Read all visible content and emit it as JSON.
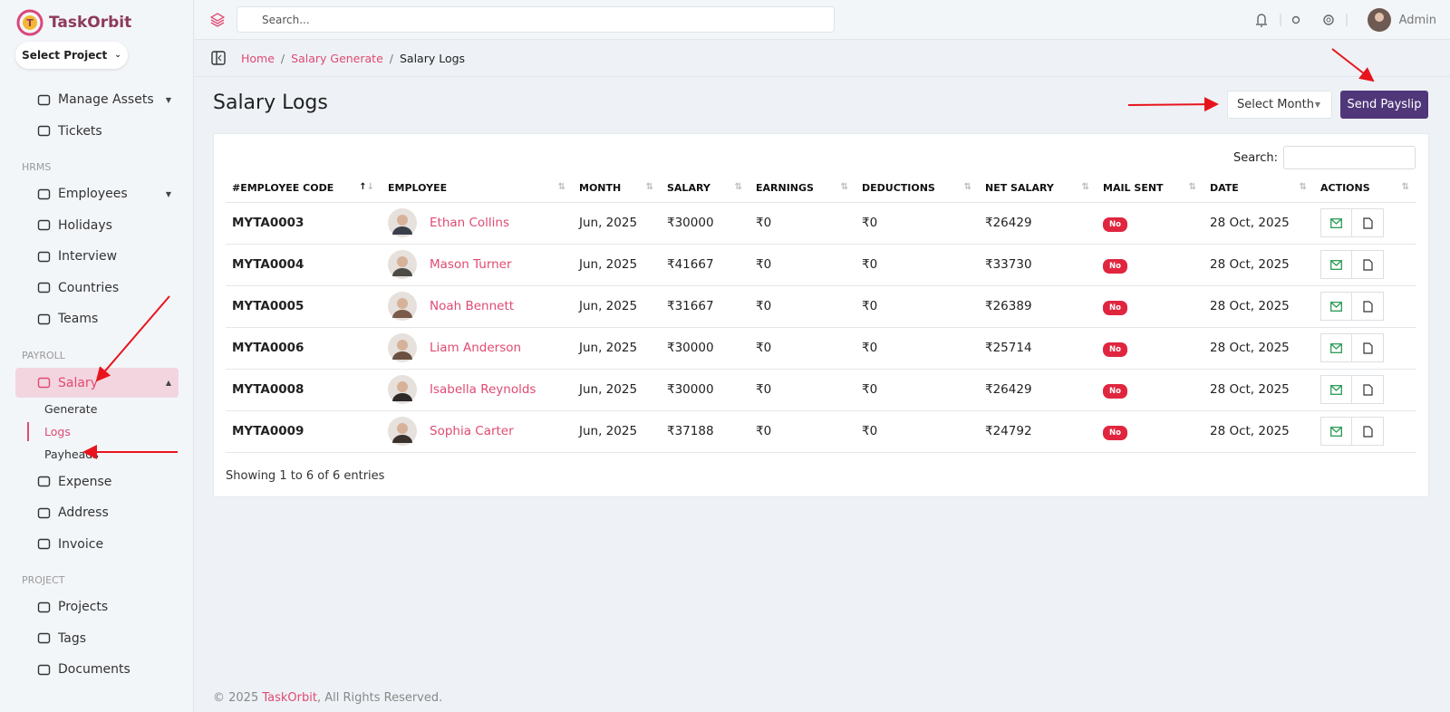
{
  "brand": "TaskOrbit",
  "project_select": "Select Project",
  "sidebar": [
    {
      "kind": "item",
      "label": "Manage Assets",
      "caret": "down"
    },
    {
      "kind": "item",
      "label": "Tickets"
    },
    {
      "kind": "section",
      "label": "HRMS"
    },
    {
      "kind": "item",
      "label": "Employees",
      "caret": "down"
    },
    {
      "kind": "item",
      "label": "Holidays"
    },
    {
      "kind": "item",
      "label": "Interview"
    },
    {
      "kind": "item",
      "label": "Countries"
    },
    {
      "kind": "item",
      "label": "Teams"
    },
    {
      "kind": "section",
      "label": "PAYROLL"
    },
    {
      "kind": "item",
      "label": "Salary",
      "caret": "up",
      "active": true
    },
    {
      "kind": "sub",
      "label": "Generate"
    },
    {
      "kind": "sub",
      "label": "Logs",
      "active": true
    },
    {
      "kind": "sub",
      "label": "Payheads"
    },
    {
      "kind": "item",
      "label": "Expense"
    },
    {
      "kind": "item",
      "label": "Address"
    },
    {
      "kind": "item",
      "label": "Invoice"
    },
    {
      "kind": "section",
      "label": "PROJECT"
    },
    {
      "kind": "item",
      "label": "Projects"
    },
    {
      "kind": "item",
      "label": "Tags"
    },
    {
      "kind": "item",
      "label": "Documents"
    }
  ],
  "topbar": {
    "search_placeholder": "Search...",
    "user": "Admin"
  },
  "breadcrumb": [
    "Home",
    "Salary Generate",
    "Salary Logs"
  ],
  "page_title": "Salary Logs",
  "select_month": "Select Month",
  "send_button": "Send Payslip",
  "table": {
    "search_label": "Search:",
    "columns": [
      "#EMPLOYEE CODE",
      "EMPLOYEE",
      "MONTH",
      "SALARY",
      "EARNINGS",
      "DEDUCTIONS",
      "NET SALARY",
      "MAIL SENT",
      "DATE",
      "ACTIONS"
    ],
    "rows": [
      [
        "MYTA0003",
        "Ethan Collins",
        "Jun, 2025",
        "₹30000",
        "₹0",
        "₹0",
        "₹26429",
        "No",
        "28 Oct, 2025"
      ],
      [
        "MYTA0004",
        "Mason Turner",
        "Jun, 2025",
        "₹41667",
        "₹0",
        "₹0",
        "₹33730",
        "No",
        "28 Oct, 2025"
      ],
      [
        "MYTA0005",
        "Noah Bennett",
        "Jun, 2025",
        "₹31667",
        "₹0",
        "₹0",
        "₹26389",
        "No",
        "28 Oct, 2025"
      ],
      [
        "MYTA0006",
        "Liam Anderson",
        "Jun, 2025",
        "₹30000",
        "₹0",
        "₹0",
        "₹25714",
        "No",
        "28 Oct, 2025"
      ],
      [
        "MYTA0008",
        "Isabella Reynolds",
        "Jun, 2025",
        "₹30000",
        "₹0",
        "₹0",
        "₹26429",
        "No",
        "28 Oct, 2025"
      ],
      [
        "MYTA0009",
        "Sophia Carter",
        "Jun, 2025",
        "₹37188",
        "₹0",
        "₹0",
        "₹24792",
        "No",
        "28 Oct, 2025"
      ]
    ],
    "info": "Showing 1 to 6 of 6 entries"
  },
  "footer": {
    "prefix": "© 2025 ",
    "brand": "TaskOrbit",
    "suffix": ", All Rights Reserved."
  }
}
